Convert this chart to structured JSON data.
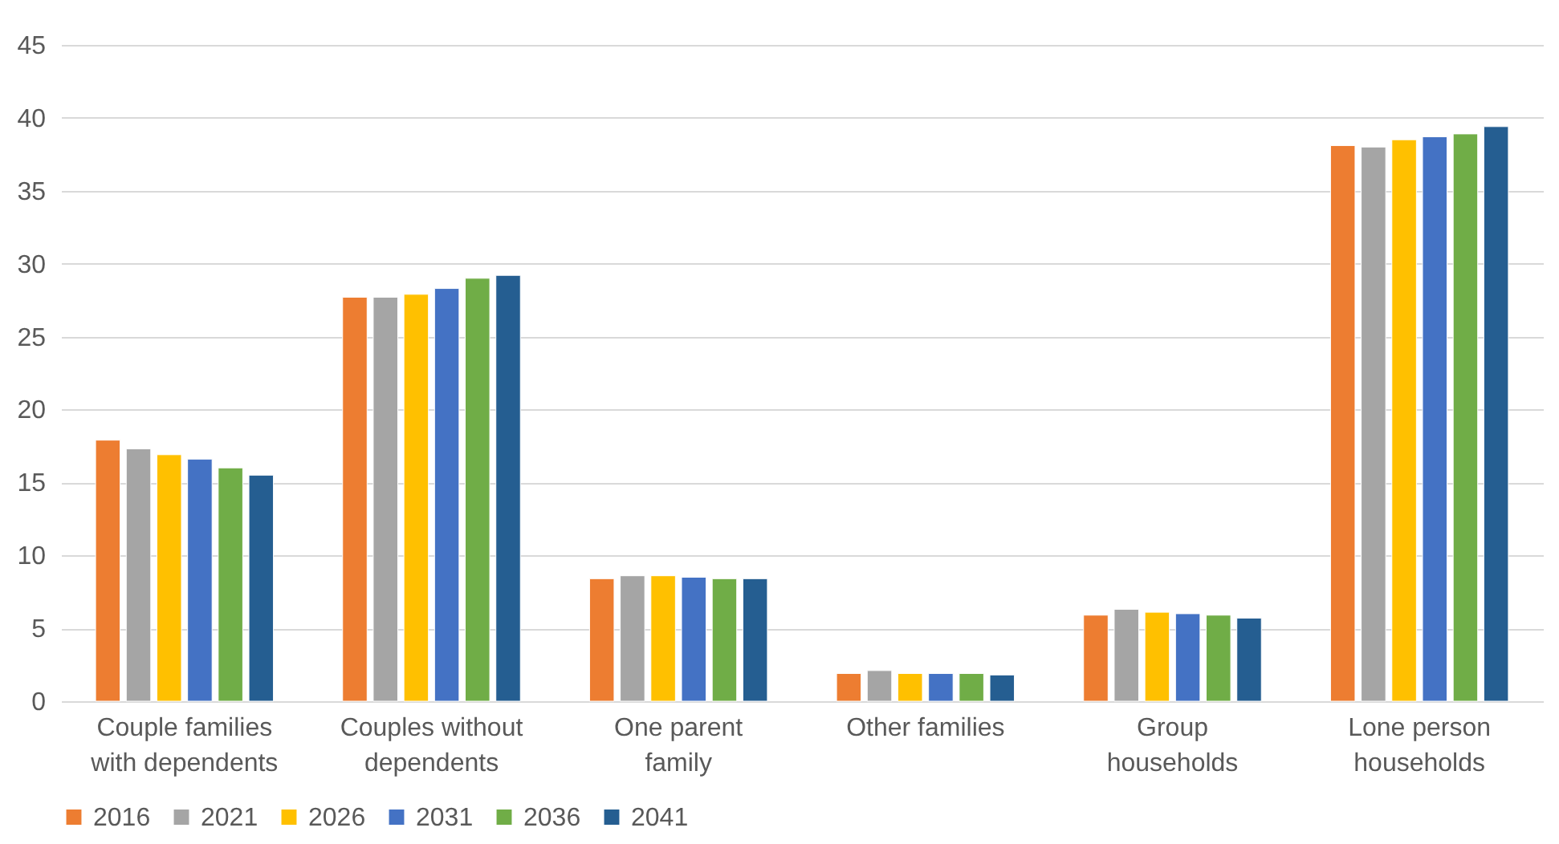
{
  "chart_data": {
    "type": "bar",
    "categories": [
      "Couple families with dependents",
      "Couples without dependents",
      "One parent family",
      "Other families",
      "Group households",
      "Lone person households"
    ],
    "series": [
      {
        "name": "2016",
        "color": "#ed7d31",
        "values": [
          17.9,
          27.7,
          8.4,
          1.9,
          5.9,
          38.1
        ]
      },
      {
        "name": "2021",
        "color": "#a5a5a5",
        "values": [
          17.3,
          27.7,
          8.6,
          2.1,
          6.3,
          38.0
        ]
      },
      {
        "name": "2026",
        "color": "#ffc000",
        "values": [
          16.9,
          27.9,
          8.6,
          1.9,
          6.1,
          38.5
        ]
      },
      {
        "name": "2031",
        "color": "#4472c4",
        "values": [
          16.6,
          28.3,
          8.5,
          1.9,
          6.0,
          38.7
        ]
      },
      {
        "name": "2036",
        "color": "#70ad47",
        "values": [
          16.0,
          29.0,
          8.4,
          1.9,
          5.9,
          38.9
        ]
      },
      {
        "name": "2041",
        "color": "#255e91",
        "values": [
          15.5,
          29.2,
          8.4,
          1.8,
          5.7,
          39.4
        ]
      }
    ],
    "ylim": [
      0,
      45
    ],
    "yticks": [
      0,
      5,
      10,
      15,
      20,
      25,
      30,
      35,
      40,
      45
    ],
    "grid": "y",
    "legend": "bottom"
  }
}
